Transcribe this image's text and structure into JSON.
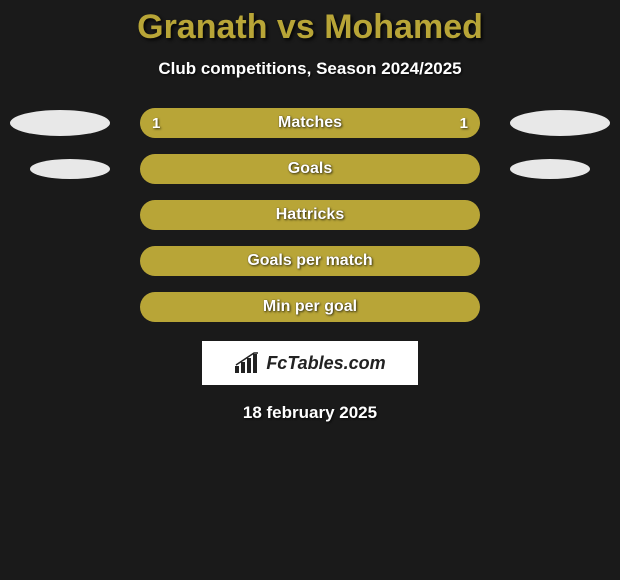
{
  "title": "Granath vs Mohamed",
  "subtitle": "Club competitions, Season 2024/2025",
  "date": "18 february 2025",
  "logo_text": "FcTables.com",
  "colors": {
    "background": "#1a1a1a",
    "accent": "#b8a537",
    "bar_fill": "#b8a537",
    "bar_bg_dim": "#8f8028",
    "ellipse": "#e8e8e8",
    "text": "#ffffff"
  },
  "rows": [
    {
      "label": "Matches",
      "left_value": "1",
      "right_value": "1",
      "left_pct": 50,
      "right_pct": 50,
      "fill_mode": "split",
      "ellipses": "large"
    },
    {
      "label": "Goals",
      "left_value": "",
      "right_value": "",
      "left_pct": 100,
      "right_pct": 0,
      "fill_mode": "full",
      "ellipses": "small"
    },
    {
      "label": "Hattricks",
      "left_value": "",
      "right_value": "",
      "left_pct": 100,
      "right_pct": 0,
      "fill_mode": "full",
      "ellipses": "none"
    },
    {
      "label": "Goals per match",
      "left_value": "",
      "right_value": "",
      "left_pct": 100,
      "right_pct": 0,
      "fill_mode": "full",
      "ellipses": "none"
    },
    {
      "label": "Min per goal",
      "left_value": "",
      "right_value": "",
      "left_pct": 100,
      "right_pct": 0,
      "fill_mode": "full",
      "ellipses": "none"
    }
  ]
}
